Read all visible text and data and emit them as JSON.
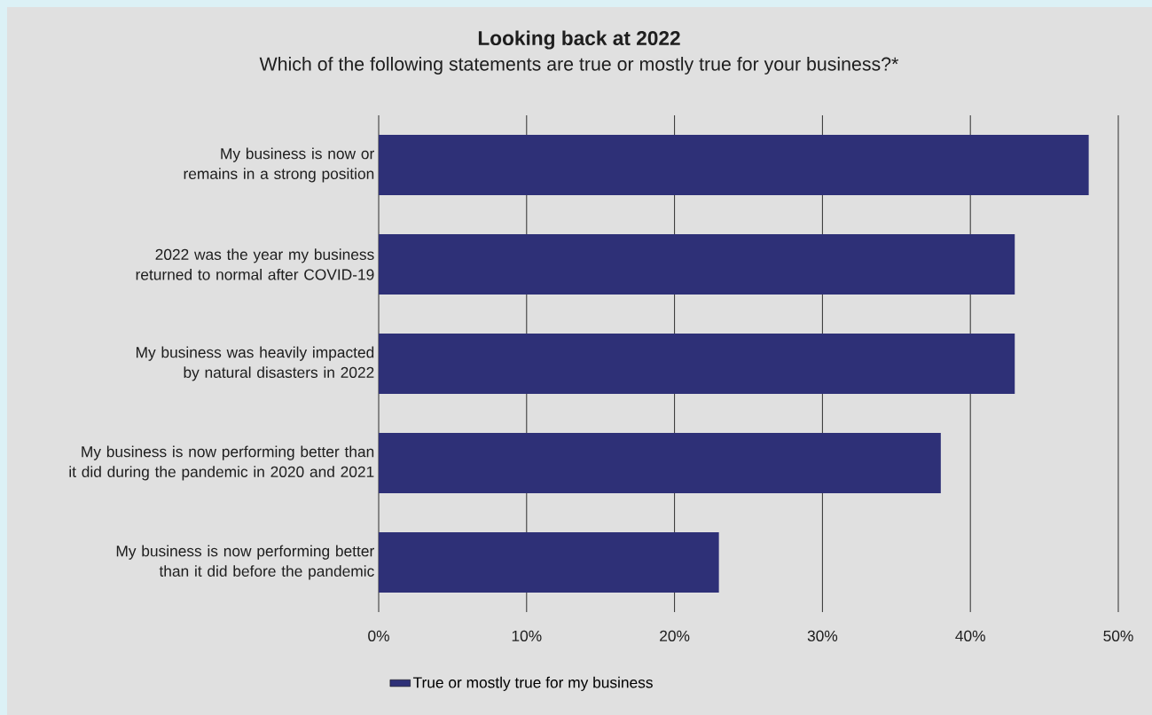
{
  "chart_data": {
    "type": "bar",
    "orientation": "horizontal",
    "title": "Looking back at 2022",
    "subtitle": "Which of the following statements are true or mostly true for your business?*",
    "categories": [
      "My business is now or remains in a strong position",
      "2022 was the year my business returned to normal after COVID-19",
      "My business was heavily impacted by natural disasters in 2022",
      "My business is now performing better than it did during the pandemic in 2020 and 2021",
      "My business is now performing better than it did before the pandemic"
    ],
    "series": [
      {
        "name": "True or mostly true for my business",
        "color": "#2e3077",
        "values": [
          48,
          43,
          43,
          38,
          23
        ]
      }
    ],
    "xlim": [
      0,
      50
    ],
    "xticks": [
      {
        "value": 0,
        "label": "0%"
      },
      {
        "value": 10,
        "label": "10%"
      },
      {
        "value": 20,
        "label": "20%"
      },
      {
        "value": 30,
        "label": "30%"
      },
      {
        "value": 40,
        "label": "40%"
      },
      {
        "value": 50,
        "label": "50%"
      }
    ],
    "grid": "x",
    "legend": "bottom"
  }
}
